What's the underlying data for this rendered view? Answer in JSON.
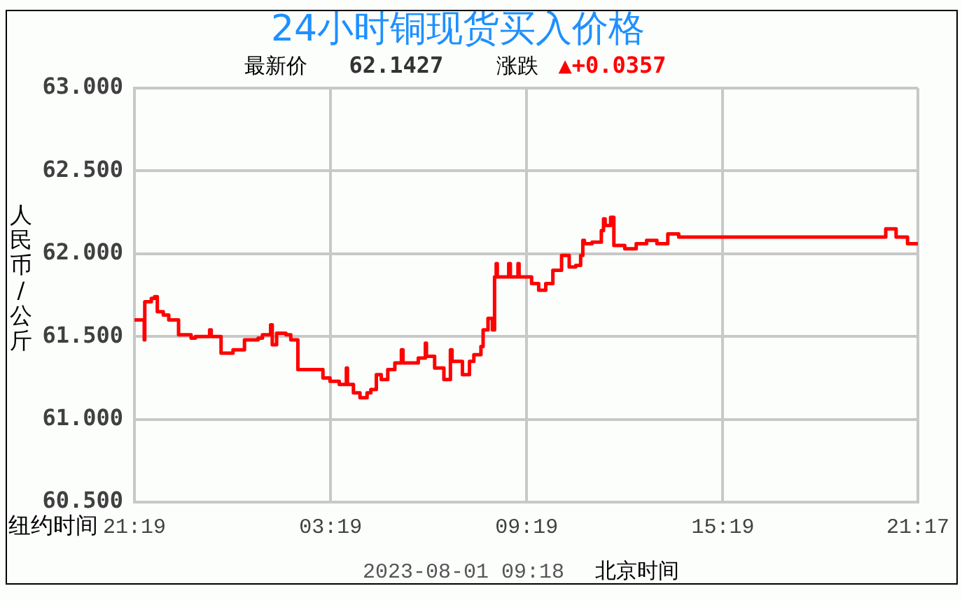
{
  "chart_data": {
    "type": "step",
    "title": "24小时铜现货买入价格",
    "subtitle": "最新价 62.1427 涨跌 ▲+0.0357",
    "ylabel": "人民币/公斤",
    "annotations": [
      "纽约时间",
      "2023-08-01 09:18 北京时间"
    ],
    "x": [
      "2023-07-30T21:19",
      "2023-07-30T21:37",
      "2023-07-30T21:38",
      "2023-07-30T21:50",
      "2023-07-30T21:56",
      "2023-07-30T22:01",
      "2023-07-30T22:12",
      "2023-07-30T22:22",
      "2023-07-30T22:40",
      "2023-07-30T23:03",
      "2023-07-30T23:11",
      "2023-07-30T23:37",
      "2023-07-30T23:40",
      "2023-07-30T23:58",
      "2023-07-31T00:20",
      "2023-07-31T00:41",
      "2023-07-31T01:06",
      "2023-07-31T01:14",
      "2023-07-31T01:29",
      "2023-07-31T01:32",
      "2023-07-31T01:40",
      "2023-07-31T01:57",
      "2023-07-31T02:06",
      "2023-07-31T02:19",
      "2023-07-31T03:05",
      "2023-07-31T03:18",
      "2023-07-31T03:35",
      "2023-07-31T03:48",
      "2023-07-31T03:50",
      "2023-07-31T04:01",
      "2023-07-31T04:13",
      "2023-07-31T04:26",
      "2023-07-31T04:33",
      "2023-07-31T04:43",
      "2023-07-31T04:52",
      "2023-07-31T05:04",
      "2023-07-31T05:17",
      "2023-07-31T05:29",
      "2023-07-31T05:32",
      "2023-07-31T06:00",
      "2023-07-31T06:13",
      "2023-07-31T06:15",
      "2023-07-31T06:30",
      "2023-07-31T06:47",
      "2023-07-31T06:59",
      "2023-07-31T07:02",
      "2023-07-31T07:21",
      "2023-07-31T07:34",
      "2023-07-31T07:42",
      "2023-07-31T07:55",
      "2023-07-31T07:59",
      "2023-07-31T08:08",
      "2023-07-31T08:16",
      "2023-07-31T08:20",
      "2023-07-31T08:23",
      "2023-07-31T08:25",
      "2023-07-31T08:46",
      "2023-07-31T08:49",
      "2023-07-31T09:03",
      "2023-07-31T09:05",
      "2023-07-31T09:28",
      "2023-07-31T09:41",
      "2023-07-31T09:54",
      "2023-07-31T10:07",
      "2023-07-31T10:23",
      "2023-07-31T10:37",
      "2023-07-31T10:49",
      "2023-07-31T10:58",
      "2023-07-31T11:02",
      "2023-07-31T11:05",
      "2023-07-31T11:19",
      "2023-07-31T11:36",
      "2023-07-31T11:40",
      "2023-07-31T11:43",
      "2023-07-31T11:53",
      "2023-07-31T11:59",
      "2023-07-31T12:19",
      "2023-07-31T12:40",
      "2023-07-31T12:59",
      "2023-07-31T13:18",
      "2023-07-31T13:38",
      "2023-07-31T13:58",
      "2023-07-31T20:18",
      "2023-07-31T20:37",
      "2023-07-31T20:58",
      "2023-07-31T21:17"
    ],
    "series": [
      {
        "color": "#ff0000",
        "values": [
          61.6,
          61.48,
          61.71,
          61.73,
          61.74,
          61.65,
          61.63,
          61.6,
          61.51,
          61.49,
          61.5,
          61.54,
          61.5,
          61.4,
          61.42,
          61.48,
          61.49,
          61.51,
          61.57,
          61.45,
          61.52,
          61.51,
          61.48,
          61.3,
          61.25,
          61.23,
          61.21,
          61.31,
          61.21,
          61.16,
          61.13,
          61.16,
          61.18,
          61.27,
          61.24,
          61.3,
          61.34,
          61.42,
          61.34,
          61.37,
          61.46,
          61.38,
          61.31,
          61.24,
          61.42,
          61.35,
          61.27,
          61.35,
          61.39,
          61.44,
          61.54,
          61.61,
          61.54,
          61.86,
          61.94,
          61.86,
          61.94,
          61.86,
          61.94,
          61.86,
          61.82,
          61.78,
          61.82,
          61.9,
          61.99,
          61.92,
          61.93,
          61.99,
          62.08,
          62.06,
          62.07,
          62.14,
          62.21,
          62.17,
          62.22,
          62.05,
          62.03,
          62.06,
          62.08,
          62.06,
          62.12,
          62.1,
          62.15,
          62.1,
          62.06,
          62.06
        ]
      }
    ],
    "xlim": [
      "2023-07-30T21:19",
      "2023-07-31T21:17"
    ],
    "xticks": [
      {
        "value": "2023-07-30T21:19",
        "label": "21:19"
      },
      {
        "value": "2023-07-31T03:19",
        "label": "03:19"
      },
      {
        "value": "2023-07-31T09:19",
        "label": "09:19"
      },
      {
        "value": "2023-07-31T15:19",
        "label": "15:19"
      },
      {
        "value": "2023-07-31T21:17",
        "label": "21:17"
      }
    ],
    "ylim": [
      60.5,
      63
    ],
    "yticks": [
      {
        "value": 60.5,
        "label": "60.500"
      },
      {
        "value": 61,
        "label": "61.000"
      },
      {
        "value": 61.5,
        "label": "61.500"
      },
      {
        "value": 62,
        "label": "62.000"
      },
      {
        "value": 62.5,
        "label": "62.500"
      },
      {
        "value": 63,
        "label": "63.000"
      }
    ],
    "grid": true,
    "legend": false,
    "marker": "none",
    "line_style": "solid"
  }
}
